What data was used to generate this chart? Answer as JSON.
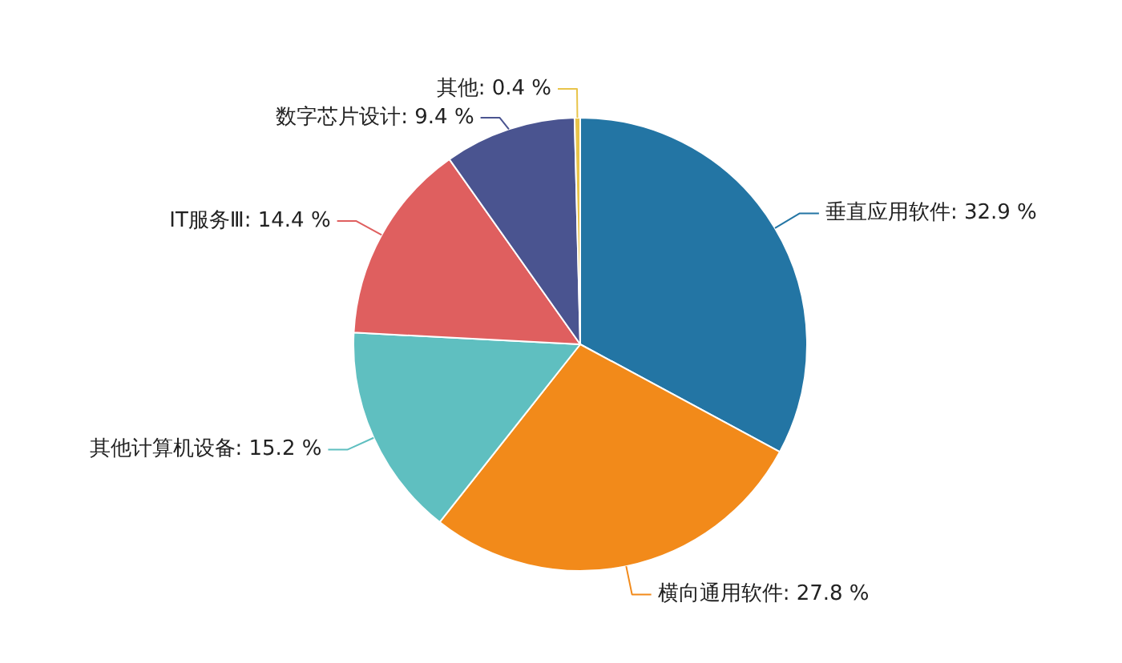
{
  "chart_data": {
    "type": "pie",
    "categories": [
      "垂直应用软件",
      "横向通用软件",
      "其他计算机设备",
      "IT服务Ⅲ",
      "数字芯片设计",
      "其他"
    ],
    "values": [
      32.9,
      27.8,
      15.2,
      14.4,
      9.4,
      0.4
    ],
    "value_labels": [
      "32.9 %",
      "27.8 %",
      "15.2 %",
      "14.4 %",
      "9.4 %",
      "0.4 %"
    ],
    "colors": [
      "#2375a4",
      "#f28a1a",
      "#5fbfc0",
      "#df5f5f",
      "#4a5490",
      "#e8c44a"
    ],
    "legend": false
  }
}
